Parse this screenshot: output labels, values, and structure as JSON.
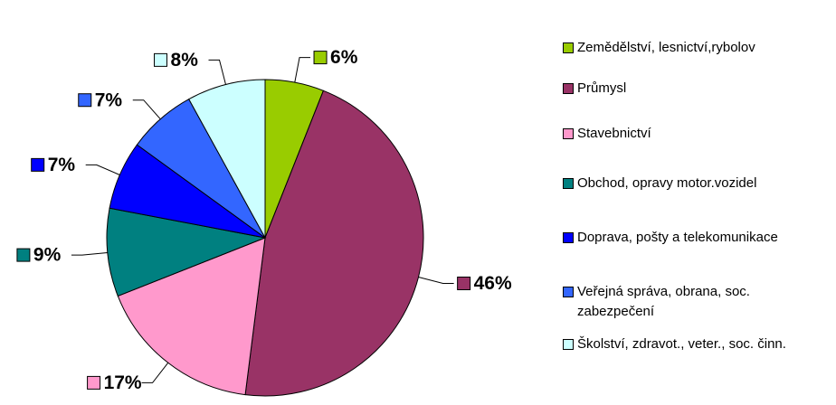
{
  "chart_data": {
    "type": "pie",
    "categories": [
      "Zemědělství, lesnictví,rybolov",
      "Průmysl",
      "Stavebnictví",
      "Obchod, opravy motor.vozidel",
      "Doprava, pošty a telekomunikace",
      "Veřejná správa, obrana, soc. zabezpečení",
      "Školství, zdravot., veter., soc. činn."
    ],
    "values": [
      6,
      46,
      17,
      9,
      7,
      7,
      8
    ],
    "value_labels": [
      "6%",
      "46%",
      "17%",
      "9%",
      "7%",
      "7%",
      "8%"
    ],
    "colors": [
      "#99cc00",
      "#993366",
      "#ff99cc",
      "#008080",
      "#0000ff",
      "#3366ff",
      "#ccffff"
    ],
    "legend": "right"
  }
}
